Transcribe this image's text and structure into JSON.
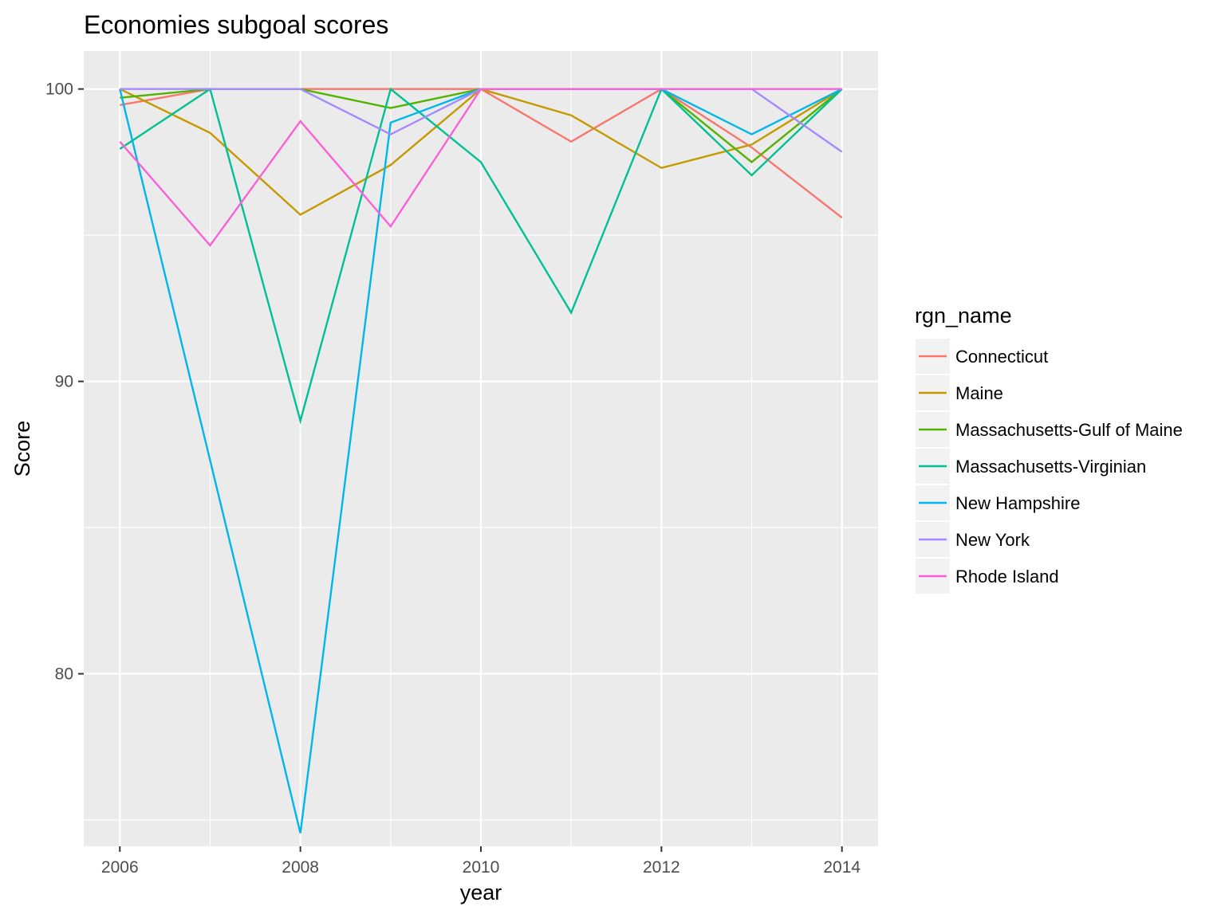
{
  "chart_data": {
    "type": "line",
    "title": "Economies subgoal scores",
    "xlabel": "year",
    "ylabel": "Score",
    "xlim": [
      2005.6,
      2014.4
    ],
    "ylim": [
      74.1,
      101.3
    ],
    "x_ticks": [
      "2006",
      "2008",
      "2010",
      "2012",
      "2014"
    ],
    "x_tick_values": [
      2006,
      2008,
      2010,
      2012,
      2014
    ],
    "y_ticks": [
      "80",
      "90",
      "100"
    ],
    "y_tick_values": [
      80,
      90,
      100
    ],
    "grid": true,
    "x": [
      2006,
      2007,
      2008,
      2009,
      2010,
      2011,
      2012,
      2013,
      2014
    ],
    "legend": {
      "title": "rgn_name",
      "position": "right"
    },
    "series": [
      {
        "name": "Connecticut",
        "color": "#F8766D",
        "values": [
          99.45,
          100,
          100,
          100,
          100,
          98.2,
          100,
          98.0,
          95.6
        ]
      },
      {
        "name": "Maine",
        "color": "#C49A00",
        "values": [
          100,
          98.5,
          95.7,
          97.4,
          100,
          99.1,
          97.3,
          98.1,
          100
        ]
      },
      {
        "name": "Massachusetts-Gulf of Maine",
        "color": "#53B400",
        "values": [
          99.7,
          100,
          100,
          99.35,
          100,
          100,
          100,
          97.5,
          100
        ]
      },
      {
        "name": "Massachusetts-Virginian",
        "color": "#00C094",
        "values": [
          97.95,
          100,
          88.65,
          100,
          97.5,
          92.35,
          100,
          97.05,
          100
        ]
      },
      {
        "name": "New Hampshire",
        "color": "#00B6EB",
        "values": [
          100,
          87.3,
          74.55,
          98.85,
          100,
          100,
          100,
          98.45,
          100
        ]
      },
      {
        "name": "New York",
        "color": "#A58AFF",
        "values": [
          100,
          100,
          100,
          98.45,
          100,
          100,
          100,
          100,
          97.85
        ]
      },
      {
        "name": "Rhode Island",
        "color": "#FB61D7",
        "values": [
          98.2,
          94.65,
          98.9,
          95.3,
          100,
          100,
          100,
          100,
          100
        ]
      }
    ]
  }
}
